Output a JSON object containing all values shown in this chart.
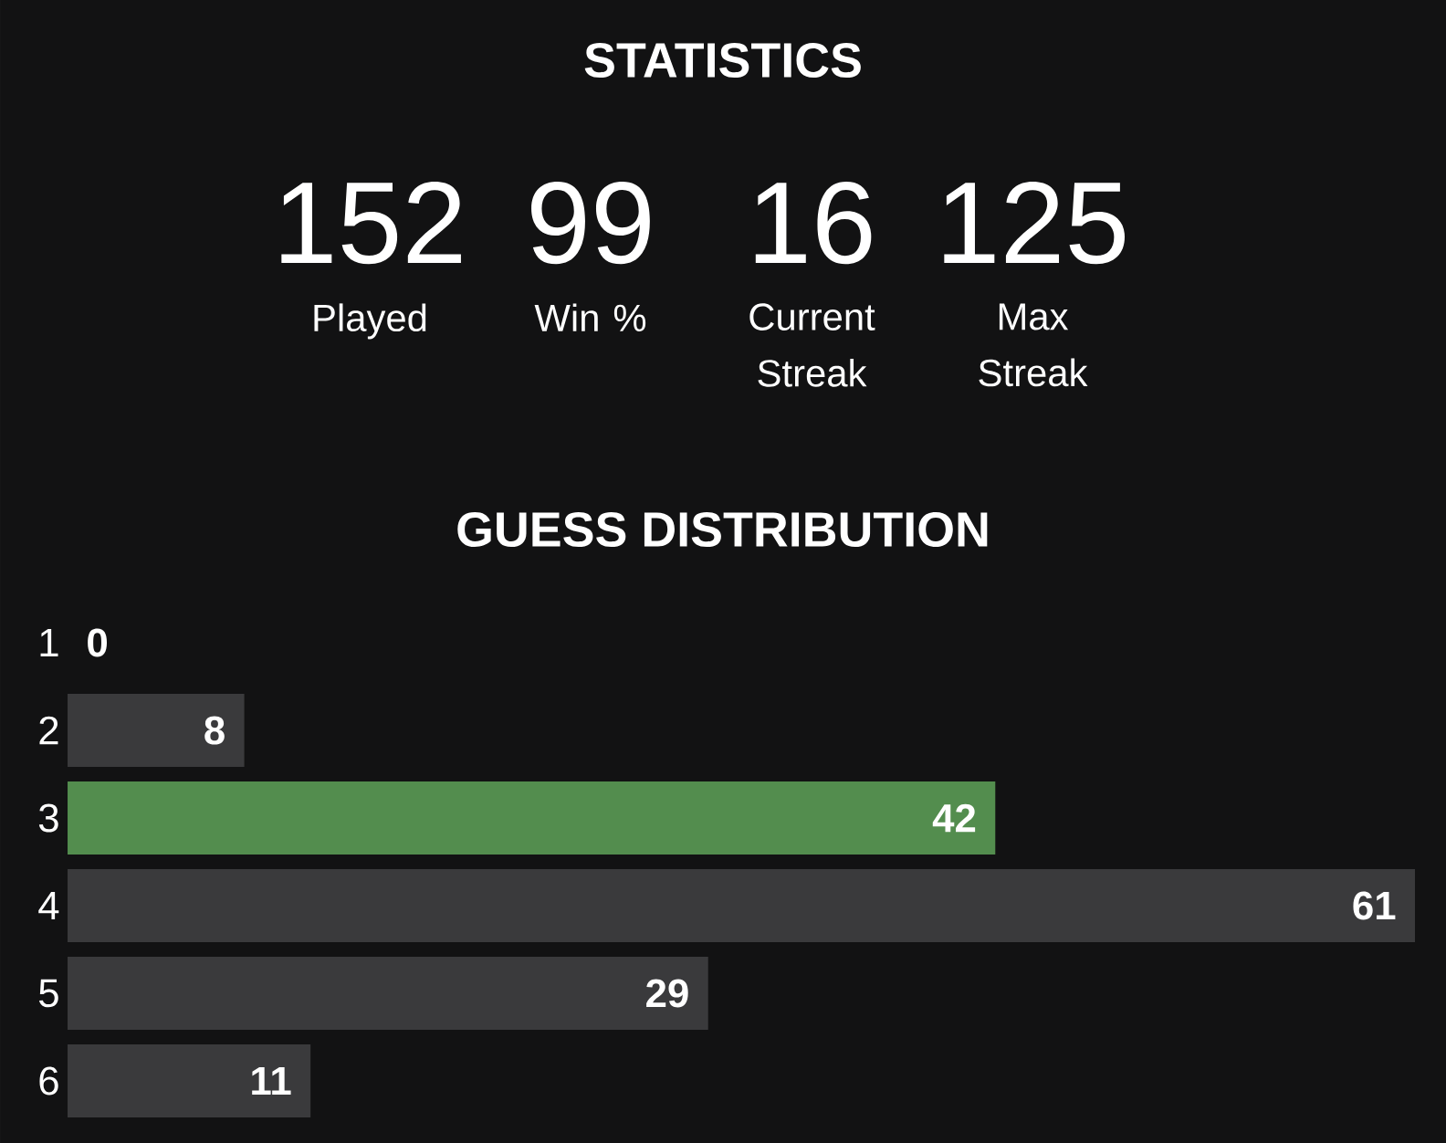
{
  "chart_data": [
    {
      "type": "other",
      "title": "STATISTICS",
      "categories": [
        "Played",
        "Win %",
        "Current Streak",
        "Max Streak"
      ],
      "values": [
        152,
        99,
        16,
        125
      ],
      "value_labels": [
        "152",
        "99",
        "16",
        "125"
      ]
    },
    {
      "type": "bar",
      "title": "GUESS DISTRIBUTION",
      "orientation": "horizontal",
      "categories": [
        "1",
        "2",
        "3",
        "4",
        "5",
        "6"
      ],
      "values": [
        0,
        8,
        42,
        61,
        29,
        11
      ],
      "colors": [
        "#3a3a3c",
        "#3a3a3c",
        "#538d4e",
        "#3a3a3c",
        "#3a3a3c",
        "#3a3a3c"
      ],
      "data_labels": true
    }
  ]
}
